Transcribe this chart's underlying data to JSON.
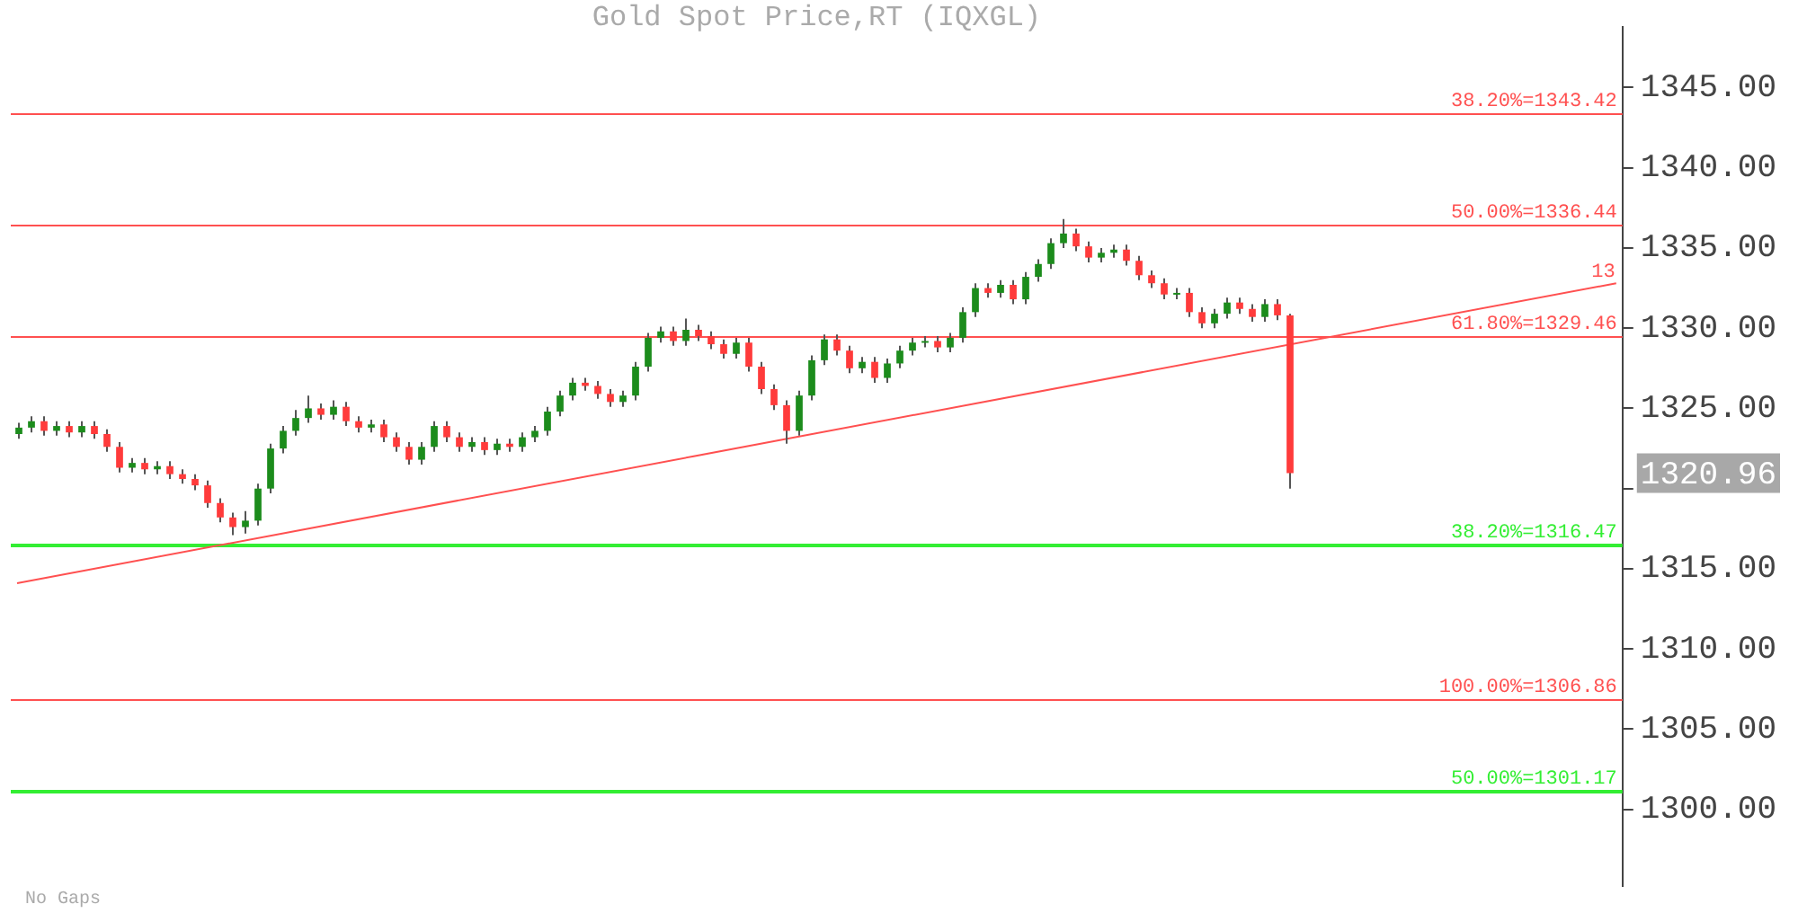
{
  "chart_data": {
    "type": "candlestick",
    "title": "Gold Spot Price,RT (IQXGL)",
    "categories": [
      null,
      null,
      null,
      null,
      null,
      null,
      null,
      null,
      null,
      null,
      null,
      null,
      null,
      null,
      null,
      null,
      null,
      null,
      null,
      null,
      null,
      null,
      null,
      null,
      null,
      null,
      null,
      null,
      null,
      null,
      null,
      null,
      null,
      null,
      null,
      null,
      null,
      null,
      null,
      null,
      null,
      null,
      null,
      null,
      null,
      null,
      null,
      null,
      null,
      null,
      null,
      null,
      null,
      null,
      null,
      null,
      null,
      null,
      null,
      null,
      null,
      null,
      null,
      null,
      null,
      null,
      null,
      null,
      null,
      null,
      null,
      null,
      null,
      null,
      null,
      null,
      null,
      null,
      null,
      null,
      null,
      null,
      null,
      null,
      null,
      null,
      null,
      null,
      null,
      null,
      null,
      null,
      null,
      null,
      null,
      null,
      null,
      null,
      null,
      null,
      null,
      null,
      null,
      null,
      null,
      null,
      null,
      null,
      null,
      null,
      null,
      null,
      null,
      null,
      null,
      null,
      null,
      null,
      null,
      null,
      null,
      null,
      null,
      null,
      null,
      null,
      null,
      null
    ],
    "series": [
      {
        "ohlc": [
          [
            1323.4,
            1324.1,
            1323.1,
            1323.8
          ],
          [
            1323.8,
            1324.5,
            1323.5,
            1324.2
          ],
          [
            1324.2,
            1324.5,
            1323.3,
            1323.6
          ],
          [
            1323.6,
            1324.2,
            1323.3,
            1323.9
          ],
          [
            1323.9,
            1324.2,
            1323.2,
            1323.5
          ],
          [
            1323.5,
            1324.2,
            1323.2,
            1323.9
          ],
          [
            1323.9,
            1324.2,
            1323.1,
            1323.4
          ],
          [
            1323.4,
            1323.7,
            1322.3,
            1322.6
          ],
          [
            1322.6,
            1322.9,
            1321.0,
            1321.3
          ],
          [
            1321.3,
            1321.9,
            1321.0,
            1321.6
          ],
          [
            1321.6,
            1321.9,
            1320.9,
            1321.2
          ],
          [
            1321.2,
            1321.7,
            1320.9,
            1321.4
          ],
          [
            1321.4,
            1321.7,
            1320.6,
            1320.9
          ],
          [
            1320.9,
            1321.2,
            1320.3,
            1320.6
          ],
          [
            1320.6,
            1320.9,
            1319.9,
            1320.2
          ],
          [
            1320.2,
            1320.5,
            1318.8,
            1319.1
          ],
          [
            1319.1,
            1319.4,
            1317.9,
            1318.2
          ],
          [
            1318.2,
            1318.5,
            1317.1,
            1317.6
          ],
          [
            1317.6,
            1318.6,
            1317.2,
            1318.0
          ],
          [
            1318.0,
            1320.3,
            1317.7,
            1320.0
          ],
          [
            1320.0,
            1322.8,
            1319.7,
            1322.5
          ],
          [
            1322.5,
            1323.9,
            1322.2,
            1323.6
          ],
          [
            1323.6,
            1324.9,
            1323.3,
            1324.4
          ],
          [
            1324.4,
            1325.8,
            1324.1,
            1325.0
          ],
          [
            1325.0,
            1325.3,
            1324.3,
            1324.6
          ],
          [
            1324.6,
            1325.5,
            1324.3,
            1325.1
          ],
          [
            1325.1,
            1325.4,
            1323.9,
            1324.2
          ],
          [
            1324.2,
            1324.5,
            1323.5,
            1323.8
          ],
          [
            1323.8,
            1324.3,
            1323.5,
            1324.0
          ],
          [
            1324.0,
            1324.3,
            1322.9,
            1323.2
          ],
          [
            1323.2,
            1323.5,
            1322.3,
            1322.6
          ],
          [
            1322.6,
            1322.9,
            1321.5,
            1321.8
          ],
          [
            1321.8,
            1322.9,
            1321.5,
            1322.6
          ],
          [
            1322.6,
            1324.2,
            1322.3,
            1323.9
          ],
          [
            1323.9,
            1324.2,
            1322.9,
            1323.2
          ],
          [
            1323.2,
            1323.5,
            1322.3,
            1322.6
          ],
          [
            1322.6,
            1323.2,
            1322.3,
            1322.9
          ],
          [
            1322.9,
            1323.2,
            1322.1,
            1322.4
          ],
          [
            1322.4,
            1323.1,
            1322.1,
            1322.8
          ],
          [
            1322.8,
            1323.1,
            1322.3,
            1322.6
          ],
          [
            1322.6,
            1323.5,
            1322.3,
            1323.2
          ],
          [
            1323.2,
            1323.9,
            1322.9,
            1323.6
          ],
          [
            1323.6,
            1325.1,
            1323.3,
            1324.8
          ],
          [
            1324.8,
            1326.1,
            1324.5,
            1325.8
          ],
          [
            1325.8,
            1326.9,
            1325.5,
            1326.6
          ],
          [
            1326.6,
            1326.9,
            1326.1,
            1326.4
          ],
          [
            1326.4,
            1326.7,
            1325.6,
            1325.9
          ],
          [
            1325.9,
            1326.2,
            1325.1,
            1325.4
          ],
          [
            1325.4,
            1326.1,
            1325.1,
            1325.8
          ],
          [
            1325.8,
            1327.9,
            1325.5,
            1327.6
          ],
          [
            1327.6,
            1329.7,
            1327.3,
            1329.4
          ],
          [
            1329.4,
            1330.1,
            1329.1,
            1329.8
          ],
          [
            1329.8,
            1330.1,
            1328.9,
            1329.2
          ],
          [
            1329.2,
            1330.6,
            1328.9,
            1329.9
          ],
          [
            1329.9,
            1330.2,
            1329.2,
            1329.5
          ],
          [
            1329.5,
            1329.8,
            1328.7,
            1329.0
          ],
          [
            1329.0,
            1329.3,
            1328.1,
            1328.4
          ],
          [
            1328.4,
            1329.4,
            1328.1,
            1329.1
          ],
          [
            1329.1,
            1329.4,
            1327.3,
            1327.6
          ],
          [
            1327.6,
            1327.9,
            1325.9,
            1326.2
          ],
          [
            1326.2,
            1326.5,
            1324.9,
            1325.2
          ],
          [
            1325.2,
            1325.5,
            1322.8,
            1323.6
          ],
          [
            1323.6,
            1326.1,
            1323.3,
            1325.8
          ],
          [
            1325.8,
            1328.3,
            1325.5,
            1328.0
          ],
          [
            1328.0,
            1329.6,
            1327.7,
            1329.3
          ],
          [
            1329.3,
            1329.6,
            1328.3,
            1328.6
          ],
          [
            1328.6,
            1328.9,
            1327.2,
            1327.5
          ],
          [
            1327.5,
            1328.2,
            1327.2,
            1327.9
          ],
          [
            1327.9,
            1328.2,
            1326.6,
            1326.9
          ],
          [
            1326.9,
            1328.1,
            1326.6,
            1327.8
          ],
          [
            1327.8,
            1328.9,
            1327.5,
            1328.6
          ],
          [
            1328.6,
            1329.4,
            1328.3,
            1329.1
          ],
          [
            1329.1,
            1329.5,
            1328.8,
            1329.2
          ],
          [
            1329.2,
            1329.5,
            1328.5,
            1328.8
          ],
          [
            1328.8,
            1329.7,
            1328.5,
            1329.4
          ],
          [
            1329.4,
            1331.3,
            1329.1,
            1331.0
          ],
          [
            1331.0,
            1332.8,
            1330.7,
            1332.5
          ],
          [
            1332.5,
            1332.8,
            1331.9,
            1332.2
          ],
          [
            1332.2,
            1333.0,
            1331.9,
            1332.7
          ],
          [
            1332.7,
            1333.0,
            1331.5,
            1331.8
          ],
          [
            1331.8,
            1333.5,
            1331.5,
            1333.2
          ],
          [
            1333.2,
            1334.3,
            1332.9,
            1334.0
          ],
          [
            1334.0,
            1335.6,
            1333.7,
            1335.3
          ],
          [
            1335.3,
            1336.8,
            1335.0,
            1335.9
          ],
          [
            1335.9,
            1336.2,
            1334.8,
            1335.1
          ],
          [
            1335.1,
            1335.4,
            1334.1,
            1334.4
          ],
          [
            1334.4,
            1335.0,
            1334.1,
            1334.7
          ],
          [
            1334.7,
            1335.2,
            1334.4,
            1334.9
          ],
          [
            1334.9,
            1335.2,
            1333.9,
            1334.2
          ],
          [
            1334.2,
            1334.5,
            1333.0,
            1333.3
          ],
          [
            1333.3,
            1333.6,
            1332.5,
            1332.8
          ],
          [
            1332.8,
            1333.1,
            1331.8,
            1332.1
          ],
          [
            1332.1,
            1332.5,
            1331.8,
            1332.2
          ],
          [
            1332.2,
            1332.5,
            1330.7,
            1331.0
          ],
          [
            1331.0,
            1331.3,
            1330.0,
            1330.3
          ],
          [
            1330.3,
            1331.2,
            1330.0,
            1330.9
          ],
          [
            1330.9,
            1331.9,
            1330.6,
            1331.6
          ],
          [
            1331.6,
            1331.9,
            1330.9,
            1331.2
          ],
          [
            1331.2,
            1331.5,
            1330.4,
            1330.7
          ],
          [
            1330.7,
            1331.8,
            1330.4,
            1331.5
          ],
          [
            1331.5,
            1331.8,
            1330.5,
            1330.8
          ],
          [
            1330.8,
            1330.9,
            1320.0,
            1320.96
          ],
          null,
          null,
          null,
          null,
          null,
          null,
          null,
          null,
          null,
          null,
          null,
          null,
          null,
          null,
          null,
          null,
          null,
          null,
          null,
          null,
          null,
          null,
          null,
          null,
          null,
          null
        ]
      },
      {
        "type": "line",
        "color": "#ff5050",
        "values": [
          1314.1,
          null,
          null,
          null,
          null,
          null,
          null,
          null,
          null,
          null,
          null,
          null,
          null,
          null,
          null,
          null,
          null,
          null,
          null,
          null,
          null,
          null,
          null,
          null,
          null,
          null,
          null,
          null,
          null,
          null,
          null,
          null,
          null,
          null,
          null,
          null,
          null,
          null,
          null,
          null,
          null,
          null,
          null,
          null,
          null,
          null,
          null,
          null,
          null,
          null,
          null,
          null,
          null,
          null,
          null,
          null,
          null,
          null,
          null,
          null,
          null,
          null,
          null,
          null,
          null,
          null,
          null,
          null,
          null,
          null,
          null,
          null,
          null,
          null,
          null,
          null,
          null,
          null,
          null,
          null,
          null,
          null,
          null,
          null,
          null,
          null,
          null,
          null,
          null,
          null,
          null,
          null,
          null,
          null,
          null,
          null,
          null,
          null,
          null,
          null,
          null,
          null,
          null,
          null,
          null,
          null,
          null,
          null,
          null,
          null,
          null,
          null,
          null,
          null,
          null,
          null,
          null,
          null,
          null,
          null,
          null,
          null,
          null,
          null,
          null,
          null,
          null,
          1332.8
        ]
      }
    ],
    "ylim": [
      1295.2,
      1348.8
    ],
    "yticks": [
      {
        "value": 1300,
        "label": "1300.00"
      },
      {
        "value": 1305,
        "label": "1305.00"
      },
      {
        "value": 1310,
        "label": "1310.00"
      },
      {
        "value": 1315,
        "label": "1315.00"
      },
      {
        "value": 1320,
        "label": null
      },
      {
        "value": 1325,
        "label": "1325.00"
      },
      {
        "value": 1330,
        "label": "1330.00"
      },
      {
        "value": 1335,
        "label": "1335.00"
      },
      {
        "value": 1340,
        "label": "1340.00"
      },
      {
        "value": 1345,
        "label": "1345.00"
      }
    ],
    "tick_labels": "y",
    "ref_lines": [
      {
        "axis": "y",
        "value": 1343.42,
        "label": "38.20%=1343.42",
        "color": "#ff5050"
      },
      {
        "axis": "y",
        "value": 1336.44,
        "label": "50.00%=1336.44",
        "color": "#ff5050"
      },
      {
        "axis": "y",
        "value": 1329.46,
        "label": "61.80%=1329.46",
        "color": "#ff5050"
      },
      {
        "axis": "y",
        "value": 1316.47,
        "label": "38.20%=1316.47",
        "color": "#33ee33"
      },
      {
        "axis": "y",
        "value": 1306.86,
        "label": "100.00%=1306.86",
        "color": "#ff5050"
      },
      {
        "axis": "y",
        "value": 1301.17,
        "label": "50.00%=1301.17",
        "color": "#33ee33"
      }
    ],
    "annotations": [
      {
        "text": "13",
        "y": 1332.8
      },
      "1320.96",
      "No Gaps"
    ]
  }
}
